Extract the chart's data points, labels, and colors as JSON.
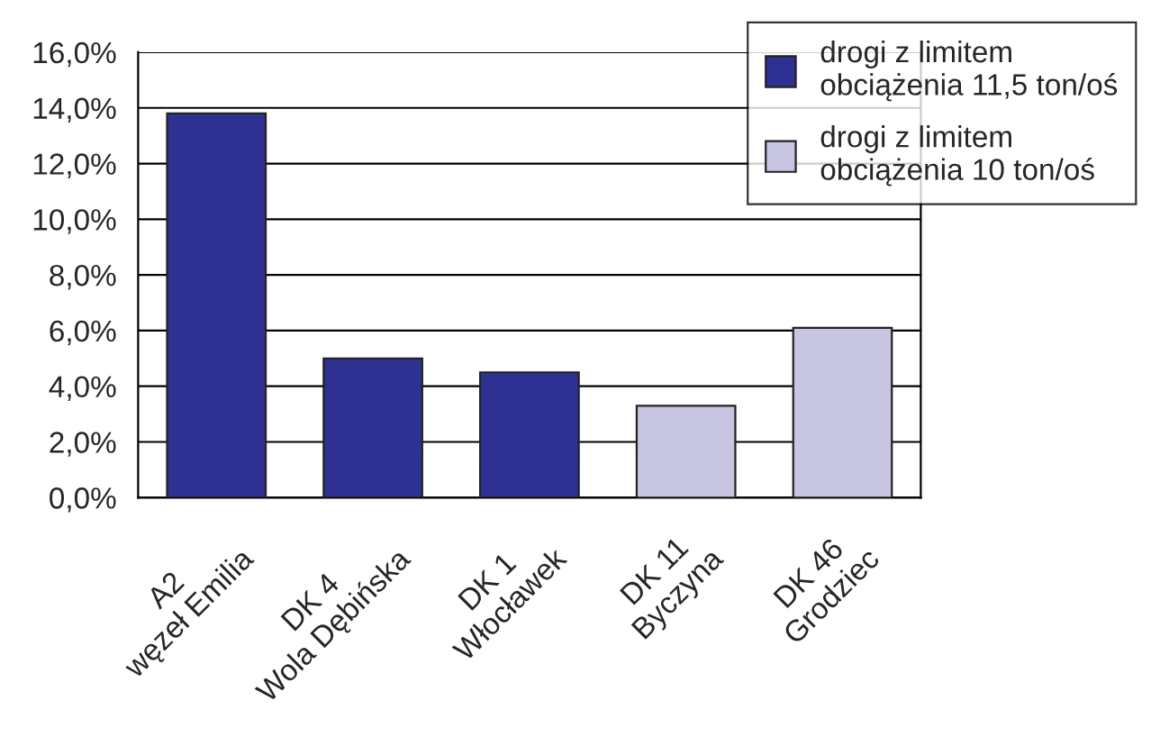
{
  "chart_data": {
    "type": "bar",
    "categories": [
      "A2\nwęzeł Emilia",
      "DK 4\nWola Dębińska",
      "DK 1\nWłocławek",
      "DK 11\nByczyna",
      "DK 46\nGrodziec"
    ],
    "series": [
      {
        "name": "drogi z limitem\nobciążenia 11,5 ton/oś",
        "color": "#2e3192",
        "values": [
          13.8,
          5.0,
          4.5,
          null,
          null
        ]
      },
      {
        "name": "drogi z limitem\nobciążenia 10 ton/oś",
        "color": "#c8c5e2",
        "values": [
          null,
          null,
          null,
          3.3,
          6.1
        ]
      }
    ],
    "ylim": [
      0,
      16
    ],
    "yticks": [
      {
        "value": 0,
        "label": "0,0%"
      },
      {
        "value": 2,
        "label": "2,0%"
      },
      {
        "value": 4,
        "label": "4,0%"
      },
      {
        "value": 6,
        "label": "6,0%"
      },
      {
        "value": 8,
        "label": "8,0%"
      },
      {
        "value": 10,
        "label": "10,0%"
      },
      {
        "value": 12,
        "label": "12,0%"
      },
      {
        "value": 14,
        "label": "14,0%"
      },
      {
        "value": 16,
        "label": "16,0%"
      }
    ],
    "grid": "y",
    "legend": "top right"
  }
}
